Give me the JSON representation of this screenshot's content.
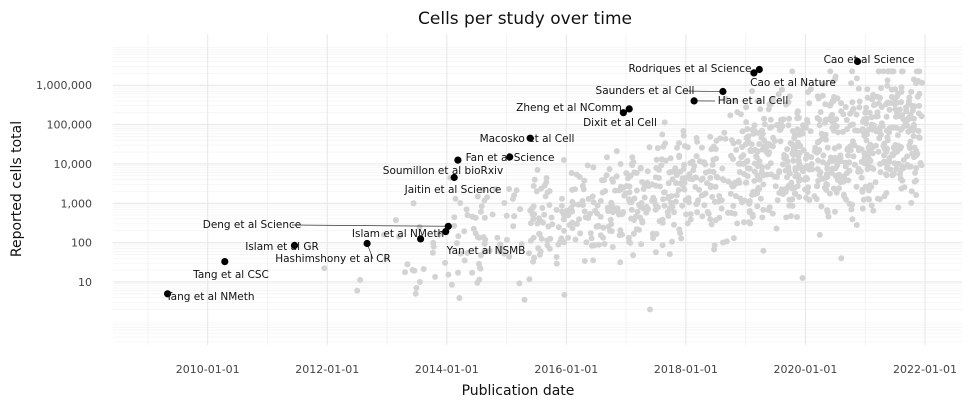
{
  "chart_data": {
    "type": "scatter",
    "title": "Cells per study over time",
    "xlabel": "Publication date",
    "ylabel": "Reported cells total",
    "x_ticks": [
      "2010-01-01",
      "2012-01-01",
      "2014-01-01",
      "2016-01-01",
      "2018-01-01",
      "2020-01-01",
      "2022-01-01"
    ],
    "y_ticks": [
      "10",
      "100",
      "1,000",
      "10,000",
      "100,000",
      "1,000,000"
    ],
    "y_scale": "log10",
    "xlim": [
      "2008-06-01",
      "2022-08-15"
    ],
    "ylim": [
      0.25,
      20000000
    ],
    "grid": true,
    "colors": {
      "highlight": "#000000",
      "background": "#d3d3d3",
      "grid": "#ebebeb"
    },
    "highlighted_studies": [
      {
        "label": "Tang et al NMeth",
        "date": "2009-05-01",
        "cells": 5
      },
      {
        "label": "Tang et al CSC",
        "date": "2010-04-15",
        "cells": 33
      },
      {
        "label": "Islam et al GR",
        "date": "2011-06-15",
        "cells": 85
      },
      {
        "label": "Hashimshony et al CR",
        "date": "2012-09-01",
        "cells": 95
      },
      {
        "label": "Deng et al Science",
        "date": "2014-01-10",
        "cells": 260
      },
      {
        "label": "Islam et al NMeth",
        "date": "2013-12-25",
        "cells": 190
      },
      {
        "label": "Yan et al NSMB",
        "date": "2013-07-25",
        "cells": 124
      },
      {
        "label": "Jaitin et al Science",
        "date": "2014-02-15",
        "cells": 4500
      },
      {
        "label": "Soumillon et al bioRxiv",
        "date": "2014-03-10",
        "cells": 12500
      },
      {
        "label": "Fan et al Science",
        "date": "2015-01-20",
        "cells": 15000
      },
      {
        "label": "Macosko et al Cell",
        "date": "2015-05-25",
        "cells": 45000
      },
      {
        "label": "Dixit et al Cell",
        "date": "2016-12-15",
        "cells": 200000
      },
      {
        "label": "Zheng et al NComm",
        "date": "2017-01-20",
        "cells": 250000
      },
      {
        "label": "Han et al Cell",
        "date": "2018-02-20",
        "cells": 400000
      },
      {
        "label": "Saunders et al Cell",
        "date": "2018-08-15",
        "cells": 690000
      },
      {
        "label": "Cao et al Nature",
        "date": "2019-02-20",
        "cells": 2050000
      },
      {
        "label": "Rodriques et al Science",
        "date": "2019-03-25",
        "cells": 2500000
      },
      {
        "label": "Cao et al Science",
        "date": "2020-11-15",
        "cells": 4000000
      }
    ]
  }
}
